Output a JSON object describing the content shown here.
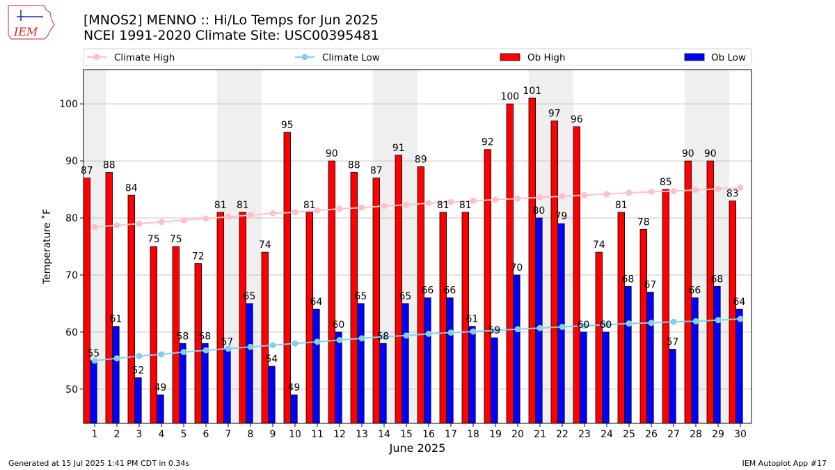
{
  "logo": {
    "text": "IEM"
  },
  "footer": {
    "left": "Generated at 15 Jul 2025 1:41 PM CDT in 0.34s",
    "right": "IEM Autoplot App #17"
  },
  "chart_data": {
    "type": "bar",
    "title": "[MNOS2] MENNO :: Hi/Lo Temps for Jun 2025",
    "subtitle": "NCEI 1991-2020 Climate Site: USC00395481",
    "xlabel": "June 2025",
    "ylabel": "Temperature ˚F",
    "ylim": [
      44,
      106
    ],
    "yticks": [
      50,
      60,
      70,
      80,
      90,
      100
    ],
    "grid": true,
    "legend_position": "top",
    "categories": [
      "1",
      "2",
      "3",
      "4",
      "5",
      "6",
      "7",
      "8",
      "9",
      "10",
      "11",
      "12",
      "13",
      "14",
      "15",
      "16",
      "17",
      "18",
      "19",
      "20",
      "21",
      "22",
      "23",
      "24",
      "25",
      "26",
      "27",
      "28",
      "29",
      "30"
    ],
    "weekend_shaded_days": [
      1,
      7,
      8,
      14,
      15,
      21,
      22,
      28,
      29
    ],
    "series": [
      {
        "name": "Ob High",
        "kind": "bar",
        "color": "#ff0000",
        "values": [
          87,
          88,
          84,
          75,
          75,
          72,
          81,
          81,
          74,
          95,
          81,
          90,
          88,
          87,
          91,
          89,
          81,
          81,
          92,
          100,
          101,
          97,
          96,
          74,
          81,
          78,
          85,
          90,
          90,
          83
        ]
      },
      {
        "name": "Ob Low",
        "kind": "bar",
        "color": "#0000ff",
        "values": [
          55,
          61,
          52,
          49,
          58,
          58,
          57,
          65,
          54,
          49,
          64,
          60,
          65,
          58,
          65,
          66,
          66,
          61,
          59,
          70,
          80,
          79,
          60,
          60,
          68,
          67,
          57,
          66,
          68,
          64
        ]
      },
      {
        "name": "Climate High",
        "kind": "line",
        "color": "#ffc0cb",
        "values": [
          78.4,
          78.7,
          79.0,
          79.3,
          79.6,
          79.9,
          80.2,
          80.5,
          80.8,
          81.0,
          81.3,
          81.6,
          81.8,
          82.1,
          82.3,
          82.6,
          82.8,
          83.0,
          83.2,
          83.4,
          83.6,
          83.8,
          84.0,
          84.2,
          84.4,
          84.6,
          84.7,
          84.9,
          85.1,
          85.3
        ]
      },
      {
        "name": "Climate Low",
        "kind": "line",
        "color": "#87ceeb",
        "values": [
          55.0,
          55.4,
          55.8,
          56.1,
          56.5,
          56.8,
          57.1,
          57.4,
          57.7,
          58.0,
          58.3,
          58.6,
          58.9,
          59.2,
          59.4,
          59.7,
          59.9,
          60.1,
          60.3,
          60.5,
          60.7,
          60.9,
          61.1,
          61.3,
          61.5,
          61.6,
          61.8,
          61.9,
          62.1,
          62.3
        ]
      }
    ],
    "legend": [
      "Climate High",
      "Climate Low",
      "Ob High",
      "Ob Low"
    ]
  }
}
